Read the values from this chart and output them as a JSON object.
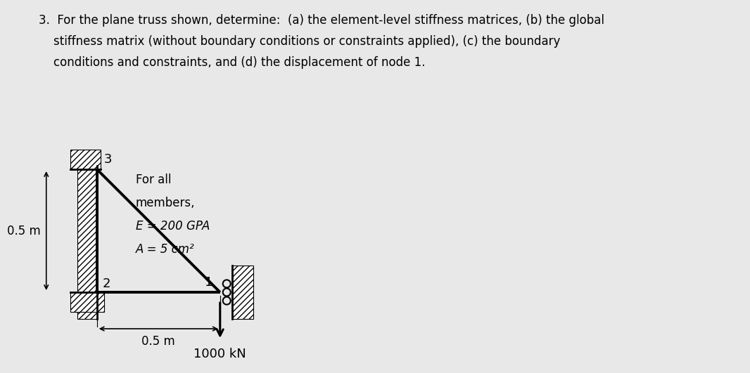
{
  "bg_color": "#e8e8e8",
  "text_color": "#111111",
  "title_line1": "3.  For the plane truss shown, determine:  (a) the element-level stiffness matrices, (b) the global",
  "title_line2": "    stiffness matrix (without boundary conditions or constraints applied), (c) the boundary",
  "title_line3": "    conditions and constraints, and (d) the displacement of node 1.",
  "label_node1": "1",
  "label_node2": "2",
  "label_node3": "3",
  "dim_horiz": "0.5 m",
  "dim_vert": "0.5 m",
  "load_label": "1000 kN",
  "member_props_line1": "For all",
  "member_props_line2": "members,",
  "member_props_line3": "E = 200 GPA",
  "member_props_line4": "A = 5 cm²",
  "truss_color": "#000000",
  "fontsize_title": 12,
  "fontsize_diagram": 12
}
